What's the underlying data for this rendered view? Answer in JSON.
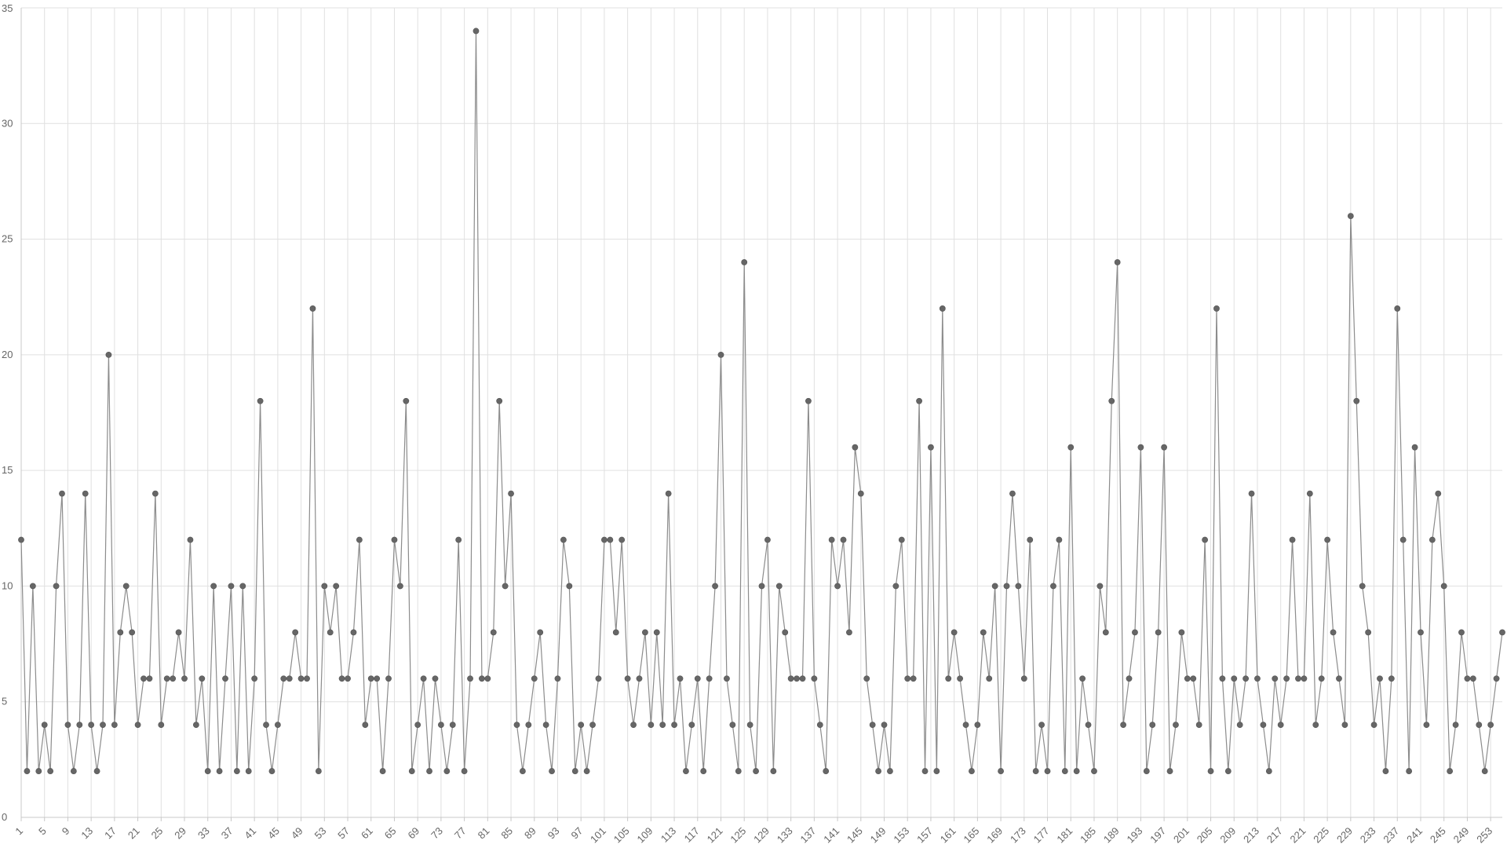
{
  "chart_data": {
    "type": "line",
    "title": "",
    "xlabel": "",
    "ylabel": "",
    "x_start": 1,
    "x_tick_step": 4,
    "ylim": [
      0,
      35
    ],
    "y_ticks": [
      0,
      5,
      10,
      15,
      20,
      25,
      30,
      35
    ],
    "grid": true,
    "legend": "none",
    "series": [
      {
        "values": [
          12,
          2,
          10,
          2,
          4,
          2,
          10,
          14,
          4,
          2,
          4,
          14,
          4,
          2,
          4,
          20,
          4,
          8,
          10,
          8,
          4,
          6,
          6,
          14,
          4,
          6,
          6,
          8,
          6,
          12,
          4,
          6,
          2,
          10,
          2,
          6,
          10,
          2,
          10,
          2,
          6,
          18,
          4,
          2,
          4,
          6,
          6,
          8,
          6,
          6,
          22,
          2,
          10,
          8,
          10,
          6,
          6,
          8,
          12,
          4,
          6,
          6,
          2,
          6,
          12,
          10,
          18,
          2,
          4,
          6,
          2,
          6,
          4,
          2,
          4,
          12,
          2,
          6,
          34,
          6,
          6,
          8,
          18,
          10,
          14,
          4,
          2,
          4,
          6,
          8,
          4,
          2,
          6,
          12,
          10,
          2,
          4,
          2,
          4,
          6,
          12,
          12,
          8,
          12,
          6,
          4,
          6,
          8,
          4,
          8,
          4,
          14,
          4,
          6,
          2,
          4,
          6,
          2,
          6,
          10,
          20,
          6,
          4,
          2,
          24,
          4,
          2,
          10,
          12,
          2,
          10,
          8,
          6,
          6,
          6,
          18,
          6,
          4,
          2,
          12,
          10,
          12,
          8,
          16,
          14,
          6,
          4,
          2,
          4,
          2,
          10,
          12,
          6,
          6,
          18,
          2,
          16,
          2,
          22,
          6,
          8,
          6,
          4,
          2,
          4,
          8,
          6,
          10,
          2,
          10,
          14,
          10,
          6,
          12,
          2,
          4,
          2,
          10,
          12,
          2,
          16,
          2,
          6,
          4,
          2,
          10,
          8,
          18,
          24,
          4,
          6,
          8,
          16,
          2,
          4,
          8,
          16,
          2,
          4,
          8,
          6,
          6,
          4,
          12,
          2,
          22,
          6,
          2,
          6,
          4,
          6,
          14,
          6,
          4,
          2,
          6,
          4,
          6,
          12,
          6,
          6,
          14,
          4,
          6,
          12,
          8,
          6,
          4,
          26,
          18,
          10,
          8,
          4,
          6,
          2,
          6,
          22,
          12,
          2,
          16,
          8,
          4,
          12,
          14,
          10,
          2,
          4,
          8,
          6,
          6,
          4,
          2,
          4,
          6,
          8
        ]
      }
    ],
    "colors": {
      "line": "#8c8c8c",
      "point": "#666666",
      "grid": "#e0e0e0",
      "axis": "#c8c8c8",
      "text": "#666666"
    }
  }
}
